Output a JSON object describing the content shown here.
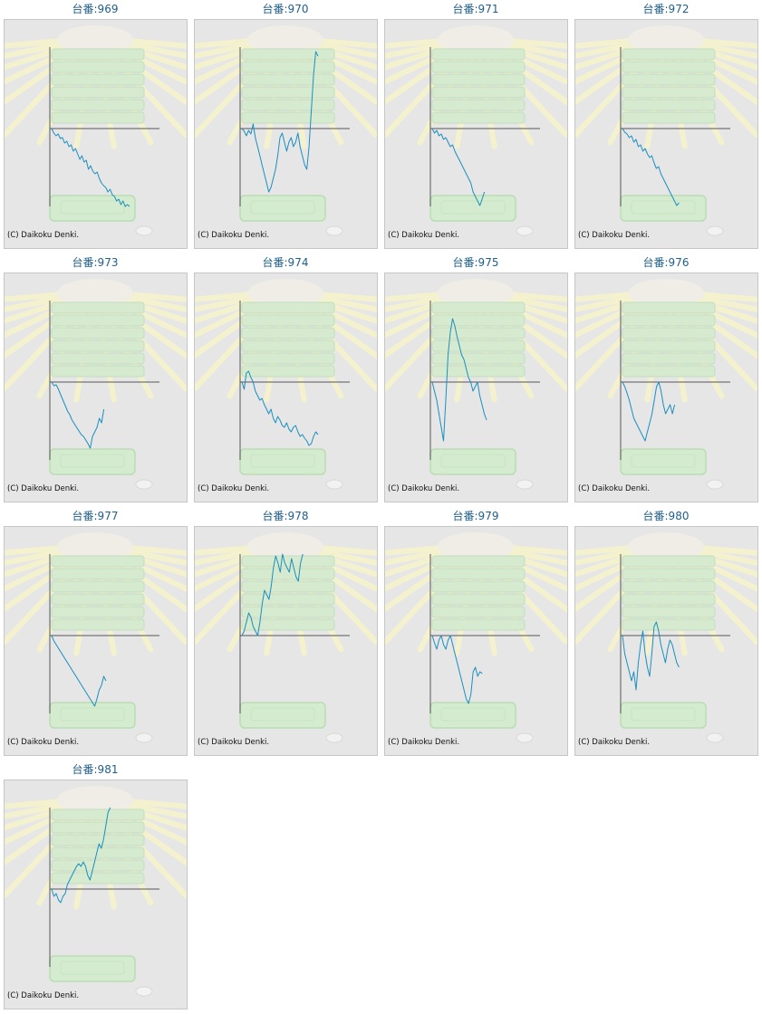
{
  "title_prefix": "台番:",
  "copyright": "(C) Daikoku Denki.",
  "colors": {
    "title": "#1f5f8b",
    "line": "#1a8fc0",
    "axis": "#555555",
    "panel": "#e6e6e6"
  },
  "chart_data": [
    {
      "type": "line",
      "title": "969",
      "y": [
        0,
        -5,
        -8,
        -6,
        -11,
        -10,
        -16,
        -14,
        -20,
        -18,
        -25,
        -22,
        -28,
        -34,
        -30,
        -37,
        -35,
        -45,
        -41,
        -47,
        -50,
        -48,
        -55,
        -60,
        -63,
        -65,
        -70,
        -67,
        -73,
        -75,
        -80,
        -78,
        -84,
        -80,
        -86,
        -84,
        -86
      ]
    },
    {
      "type": "line",
      "title": "970",
      "y": [
        0,
        -3,
        -8,
        -2,
        -6,
        5,
        -10,
        -20,
        -30,
        -40,
        -50,
        -60,
        -70,
        -65,
        -55,
        -45,
        -30,
        -10,
        -5,
        -15,
        -25,
        -15,
        -10,
        -20,
        -15,
        -5,
        -20,
        -30,
        -40,
        -45,
        -20,
        20,
        60,
        85,
        80
      ]
    },
    {
      "type": "line",
      "title": "971",
      "y": [
        0,
        -5,
        -2,
        -8,
        -6,
        -12,
        -10,
        -15,
        -20,
        -18,
        -25,
        -30,
        -35,
        -40,
        -45,
        -50,
        -55,
        -60,
        -70,
        -75,
        -80,
        -85,
        -78,
        -70
      ]
    },
    {
      "type": "line",
      "title": "972",
      "y": [
        0,
        -4,
        -6,
        -10,
        -8,
        -15,
        -12,
        -20,
        -18,
        -25,
        -22,
        -28,
        -32,
        -30,
        -38,
        -44,
        -42,
        -50,
        -55,
        -60,
        -65,
        -70,
        -75,
        -80,
        -85,
        -82
      ]
    },
    {
      "type": "line",
      "title": "973",
      "y": [
        0,
        -4,
        -3,
        -8,
        -14,
        -20,
        -26,
        -32,
        -36,
        -42,
        -46,
        -50,
        -54,
        -58,
        -60,
        -64,
        -68,
        -73,
        -60,
        -55,
        -50,
        -40,
        -45,
        -30
      ]
    },
    {
      "type": "line",
      "title": "974",
      "y": [
        0,
        -8,
        10,
        12,
        5,
        0,
        -10,
        -15,
        -20,
        -18,
        -25,
        -30,
        -35,
        -30,
        -40,
        -45,
        -38,
        -42,
        -48,
        -50,
        -45,
        -52,
        -55,
        -50,
        -48,
        -55,
        -60,
        -58,
        -62,
        -65,
        -70,
        -68,
        -60,
        -55,
        -58
      ]
    },
    {
      "type": "line",
      "title": "975",
      "y": [
        0,
        -10,
        -20,
        -35,
        -50,
        -65,
        -20,
        30,
        55,
        70,
        62,
        50,
        40,
        30,
        25,
        15,
        5,
        0,
        -10,
        -5,
        0,
        -15,
        -25,
        -35,
        -42
      ]
    },
    {
      "type": "line",
      "title": "976",
      "y": [
        0,
        -5,
        -12,
        -20,
        -30,
        -40,
        -45,
        -50,
        -55,
        -60,
        -65,
        -55,
        -45,
        -35,
        -20,
        -5,
        0,
        -10,
        -25,
        -35,
        -30,
        -25,
        -35,
        -25
      ]
    },
    {
      "type": "line",
      "title": "977",
      "y": [
        0,
        -6,
        -10,
        -14,
        -18,
        -22,
        -26,
        -30,
        -34,
        -38,
        -42,
        -46,
        -50,
        -54,
        -58,
        -62,
        -66,
        -70,
        -74,
        -78,
        -70,
        -60,
        -55,
        -45,
        -50
      ]
    },
    {
      "type": "line",
      "title": "978",
      "y": [
        0,
        5,
        15,
        25,
        20,
        10,
        5,
        0,
        15,
        35,
        50,
        45,
        40,
        55,
        75,
        88,
        80,
        70,
        90,
        80,
        75,
        70,
        85,
        75,
        65,
        60,
        80,
        90
      ]
    },
    {
      "type": "line",
      "title": "979",
      "y": [
        0,
        -8,
        -15,
        -5,
        0,
        -10,
        -15,
        -5,
        0,
        -10,
        -20,
        -30,
        -40,
        -50,
        -60,
        -70,
        -75,
        -65,
        -40,
        -35,
        -45,
        -40,
        -42
      ]
    },
    {
      "type": "line",
      "title": "980",
      "y": [
        0,
        -20,
        -30,
        -40,
        -50,
        -40,
        -60,
        -30,
        -10,
        5,
        -20,
        -35,
        -45,
        -20,
        10,
        15,
        5,
        -10,
        -20,
        -30,
        -15,
        -5,
        -10,
        -20,
        -30,
        -35
      ]
    },
    {
      "type": "line",
      "title": "981",
      "y": [
        0,
        -8,
        -5,
        -12,
        -15,
        -8,
        -5,
        5,
        10,
        15,
        20,
        25,
        28,
        25,
        30,
        25,
        15,
        10,
        20,
        30,
        40,
        50,
        45,
        55,
        70,
        85,
        90
      ]
    }
  ]
}
